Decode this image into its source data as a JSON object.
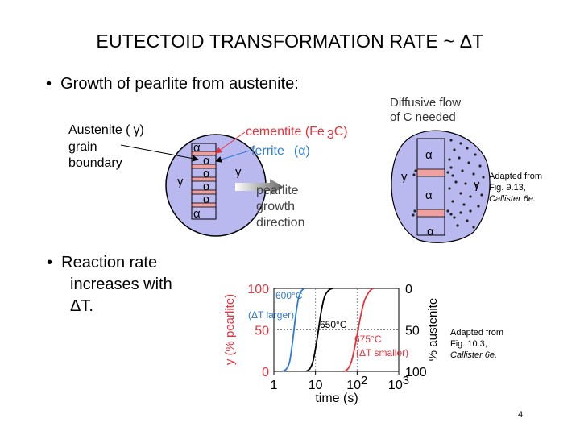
{
  "title": "EUTECTOID TRANSFORMATION RATE ~ ΔT",
  "bullets": {
    "growth": "Growth of pearlite from austenite:",
    "reaction_line1": "Reaction rate",
    "reaction_line2": "increases with",
    "reaction_line3": "ΔT."
  },
  "pearlite_diagram": {
    "austenite_label": "Austenite (",
    "gamma": "γ",
    "close_paren": ")",
    "grain_label": "grain",
    "boundary_label": "boundary",
    "cementite_label": "cementite (Fe",
    "cementite_sub": "3",
    "cementite_end": "C)",
    "ferrite_label": "ferrite",
    "ferrite_alpha": "(α)",
    "alpha": "α",
    "growth_line1": "pearlite",
    "growth_line2": "growth",
    "growth_line3": "direction"
  },
  "diffusion_diagram": {
    "title_line1": "Diffusive flow",
    "title_line2": "of C needed",
    "alpha": "α",
    "gamma": "γ"
  },
  "credit_1": {
    "line1": "Adapted from",
    "line2": "Fig. 9.13,",
    "line3": "Callister 6e."
  },
  "credit_2": {
    "line1": "Adapted from",
    "line2": "Fig. 10.3,",
    "line3": "Callister 6e."
  },
  "chart_data": {
    "type": "line",
    "xlabel": "time (s)",
    "ylabel": "y (% pearlite)",
    "ylabel_right": "% austenite",
    "x_scale": "log",
    "xlim": [
      1,
      1000
    ],
    "ylim": [
      0,
      100
    ],
    "x_ticks": [
      {
        "value": 1,
        "label": "1"
      },
      {
        "value": 10,
        "label": "10"
      },
      {
        "value": 100,
        "label": "10",
        "exp": "2"
      },
      {
        "value": 1000,
        "label": "10",
        "exp": "3"
      }
    ],
    "y_ticks_left": [
      "0",
      "50",
      "100"
    ],
    "y_ticks_right": [
      "100",
      "50",
      "0"
    ],
    "series": [
      {
        "name": "600°C",
        "note": "(ΔT larger)",
        "color": "#2e7bd6",
        "points": [
          [
            1.6,
            0
          ],
          [
            2.0,
            3
          ],
          [
            2.4,
            12
          ],
          [
            2.8,
            35
          ],
          [
            3.3,
            65
          ],
          [
            3.9,
            88
          ],
          [
            4.6,
            97
          ],
          [
            5.5,
            100
          ]
        ]
      },
      {
        "name": "650°C",
        "note": "",
        "color": "#000000",
        "points": [
          [
            6,
            0
          ],
          [
            7.5,
            4
          ],
          [
            9,
            15
          ],
          [
            11,
            40
          ],
          [
            13.5,
            70
          ],
          [
            16.5,
            90
          ],
          [
            21,
            98
          ],
          [
            26,
            100
          ]
        ]
      },
      {
        "name": "675°C",
        "note": "(ΔT smaller)",
        "color": "#e8323c",
        "points": [
          [
            50,
            0
          ],
          [
            62,
            4
          ],
          [
            76,
            15
          ],
          [
            95,
            38
          ],
          [
            120,
            65
          ],
          [
            150,
            85
          ],
          [
            195,
            96
          ],
          [
            240,
            100
          ]
        ]
      }
    ]
  },
  "slide_number": "4"
}
